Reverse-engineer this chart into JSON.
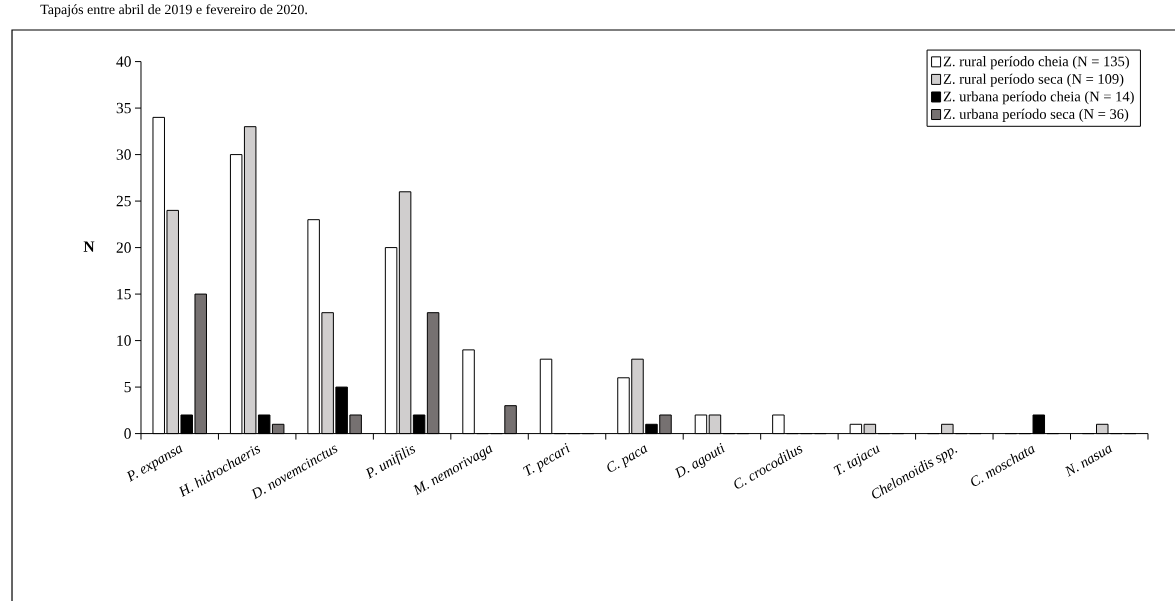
{
  "chart_data": {
    "type": "bar",
    "ylabel": "N",
    "annotations": [
      "Tapajós entre abril de 2019 e fevereiro de 2020."
    ],
    "categories": [
      "P. expansa",
      "H. hidrochaeris",
      "D. novemcinctus",
      "P. unifilis",
      "M. nemorivaga",
      "T. pecari",
      "C. paca",
      "D. agouti",
      "C. crocodilus",
      "T. tajacu",
      "Chelonoidis spp.",
      "C. moschata",
      "N. nasua"
    ],
    "series": [
      {
        "name": "Z. rural período cheia (N = 135)",
        "color": "#ffffff",
        "values": [
          34,
          30,
          23,
          20,
          9,
          8,
          6,
          2,
          2,
          1,
          0,
          0,
          0
        ]
      },
      {
        "name": "Z. rural período seca (N = 109)",
        "color": "#d0cece",
        "values": [
          24,
          33,
          13,
          26,
          0,
          0,
          8,
          2,
          0,
          1,
          1,
          0,
          1
        ]
      },
      {
        "name": "Z. urbana período cheia (N = 14)",
        "color": "#000000",
        "values": [
          2,
          2,
          5,
          2,
          0,
          0,
          1,
          0,
          0,
          0,
          0,
          2,
          0
        ]
      },
      {
        "name": "Z. urbana período seca (N = 36)",
        "color": "#767171",
        "values": [
          15,
          1,
          2,
          13,
          3,
          0,
          2,
          0,
          0,
          0,
          0,
          0,
          0
        ]
      }
    ],
    "ylim": [
      0,
      40
    ],
    "yticks": [
      0,
      5,
      10,
      15,
      20,
      25,
      30,
      35,
      40
    ],
    "grid": false,
    "legend": "top right"
  }
}
